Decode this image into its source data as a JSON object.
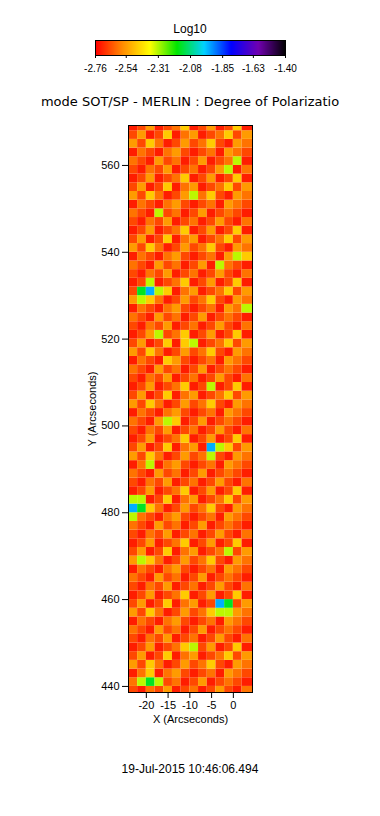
{
  "chart_data": {
    "type": "heatmap",
    "title": "mode SOT/SP - MERLIN : Degree of Polarizatio",
    "x_label": "X (Arcseconds)",
    "y_label": "Y (Arcseconds)",
    "xlim": [
      -24.1,
      4.4
    ],
    "ylim": [
      438.6,
      569.2
    ],
    "xticks": [
      -20,
      -15,
      -10,
      -5,
      0
    ],
    "yticks": [
      440,
      460,
      480,
      500,
      520,
      540,
      560
    ],
    "x_edges": [
      -25,
      -22,
      -20,
      -18,
      -16,
      -14,
      -12,
      -10,
      -8,
      -6,
      -4,
      -2,
      0,
      2,
      5
    ],
    "y_edges": [
      438,
      440,
      442,
      444,
      446,
      448,
      450,
      452,
      454,
      456,
      458,
      460,
      462,
      464,
      466,
      468,
      470,
      472,
      474,
      476,
      478,
      480,
      482,
      484,
      486,
      488,
      490,
      492,
      494,
      496,
      498,
      500,
      502,
      504,
      506,
      508,
      510,
      512,
      514,
      516,
      518,
      520,
      522,
      524,
      526,
      528,
      530,
      532,
      534,
      536,
      538,
      540,
      542,
      544,
      546,
      548,
      550,
      552,
      554,
      556,
      558,
      560,
      562,
      564,
      566,
      568,
      570
    ],
    "z": [
      [
        -2.66,
        -2.72,
        -2.6,
        -2.66,
        -2.54,
        -2.72,
        -2.66,
        -2.6,
        -2.72,
        -2.66,
        -2.54,
        -2.66,
        -2.72,
        -2.6
      ],
      [
        -2.6,
        -2.32,
        -2.15,
        -2.32,
        -2.66,
        -2.6,
        -2.72,
        -2.66,
        -2.54,
        -2.72,
        -2.66,
        -2.6,
        -2.66,
        -2.72
      ],
      [
        -2.72,
        -2.6,
        -2.46,
        -2.72,
        -2.6,
        -2.54,
        -2.66,
        -2.72,
        -2.66,
        -2.6,
        -2.72,
        -2.54,
        -2.6,
        -2.66
      ],
      [
        -2.54,
        -2.66,
        -2.46,
        -2.6,
        -2.72,
        -2.66,
        -2.54,
        -2.66,
        -2.6,
        -2.46,
        -2.66,
        -2.72,
        -2.54,
        -2.6
      ],
      [
        -2.66,
        -2.54,
        -2.72,
        -2.66,
        -2.46,
        -2.72,
        -2.6,
        -2.54,
        -2.72,
        -2.66,
        -2.6,
        -2.46,
        -2.66,
        -2.54
      ],
      [
        -2.72,
        -2.66,
        -2.54,
        -2.72,
        -2.66,
        -2.6,
        -2.46,
        -2.32,
        -2.66,
        -2.54,
        -2.72,
        -2.66,
        -2.46,
        -2.72
      ],
      [
        -2.66,
        -2.72,
        -2.6,
        -2.66,
        -2.54,
        -2.72,
        -2.66,
        -2.6,
        -2.72,
        -2.66,
        -2.54,
        -2.66,
        -2.72,
        -2.6
      ],
      [
        -2.6,
        -2.66,
        -2.72,
        -2.54,
        -2.66,
        -2.6,
        -2.72,
        -2.66,
        -2.54,
        -2.72,
        -2.66,
        -2.6,
        -2.66,
        -2.72
      ],
      [
        -2.72,
        -2.6,
        -2.66,
        -2.72,
        -2.6,
        -2.54,
        -2.66,
        -2.72,
        -2.66,
        -2.6,
        -2.72,
        -2.54,
        -2.6,
        -2.66
      ],
      [
        -2.54,
        -2.66,
        -2.46,
        -2.6,
        -2.72,
        -2.66,
        -2.54,
        -2.66,
        -2.6,
        -2.46,
        -2.32,
        -2.32,
        -2.54,
        -2.6
      ],
      [
        -2.66,
        -2.54,
        -2.72,
        -2.66,
        -2.46,
        -2.72,
        -2.6,
        -2.54,
        -2.72,
        -2.66,
        -1.95,
        -2.15,
        -2.66,
        -2.54
      ],
      [
        -2.72,
        -2.66,
        -2.54,
        -2.72,
        -2.66,
        -2.6,
        -2.46,
        -2.72,
        -2.66,
        -2.54,
        -2.72,
        -2.66,
        -2.46,
        -2.72
      ],
      [
        -2.66,
        -2.72,
        -2.6,
        -2.66,
        -2.54,
        -2.72,
        -2.66,
        -2.6,
        -2.72,
        -2.66,
        -2.54,
        -2.66,
        -2.72,
        -2.6
      ],
      [
        -2.6,
        -2.66,
        -2.72,
        -2.54,
        -2.66,
        -2.6,
        -2.72,
        -2.66,
        -2.54,
        -2.72,
        -2.66,
        -2.6,
        -2.66,
        -2.72
      ],
      [
        -2.72,
        -2.6,
        -2.66,
        -2.72,
        -2.6,
        -2.54,
        -2.66,
        -2.72,
        -2.66,
        -2.6,
        -2.72,
        -2.54,
        -2.6,
        -2.66
      ],
      [
        -2.54,
        -2.32,
        -2.46,
        -2.6,
        -2.72,
        -2.66,
        -2.54,
        -2.66,
        -2.6,
        -2.46,
        -2.66,
        -2.72,
        -2.54,
        -2.6
      ],
      [
        -2.66,
        -2.54,
        -2.72,
        -2.66,
        -2.46,
        -2.72,
        -2.6,
        -2.54,
        -2.72,
        -2.66,
        -2.6,
        -2.32,
        -2.66,
        -2.54
      ],
      [
        -2.72,
        -2.66,
        -2.54,
        -2.72,
        -2.66,
        -2.6,
        -2.46,
        -2.72,
        -2.66,
        -2.54,
        -2.72,
        -2.66,
        -2.46,
        -2.72
      ],
      [
        -2.66,
        -2.72,
        -2.6,
        -2.66,
        -2.54,
        -2.72,
        -2.66,
        -2.6,
        -2.72,
        -2.66,
        -2.54,
        -2.66,
        -2.72,
        -2.6
      ],
      [
        -2.6,
        -2.66,
        -2.72,
        -2.54,
        -2.66,
        -2.6,
        -2.72,
        -2.66,
        -2.54,
        -2.72,
        -2.66,
        -2.6,
        -2.66,
        -2.72
      ],
      [
        -2.32,
        -2.6,
        -2.66,
        -2.72,
        -2.6,
        -2.54,
        -2.66,
        -2.72,
        -2.66,
        -2.6,
        -2.72,
        -2.54,
        -2.6,
        -2.66
      ],
      [
        -1.95,
        -2.15,
        -2.46,
        -2.6,
        -2.72,
        -2.66,
        -2.54,
        -2.66,
        -2.6,
        -2.46,
        -2.66,
        -2.72,
        -2.54,
        -2.6
      ],
      [
        -2.32,
        -2.32,
        -2.72,
        -2.66,
        -2.46,
        -2.72,
        -2.6,
        -2.54,
        -2.72,
        -2.66,
        -2.6,
        -2.46,
        -2.66,
        -2.54
      ],
      [
        -2.72,
        -2.66,
        -2.54,
        -2.72,
        -2.66,
        -2.6,
        -2.46,
        -2.72,
        -2.66,
        -2.54,
        -2.72,
        -2.66,
        -2.46,
        -2.72
      ],
      [
        -2.66,
        -2.72,
        -2.6,
        -2.66,
        -2.54,
        -2.72,
        -2.66,
        -2.6,
        -2.72,
        -2.66,
        -2.54,
        -2.66,
        -2.72,
        -2.6
      ],
      [
        -2.6,
        -2.66,
        -2.72,
        -2.54,
        -2.66,
        -2.6,
        -2.72,
        -2.66,
        -2.54,
        -2.72,
        -2.66,
        -2.6,
        -2.66,
        -2.72
      ],
      [
        -2.72,
        -2.6,
        -2.32,
        -2.72,
        -2.6,
        -2.54,
        -2.66,
        -2.72,
        -2.66,
        -2.6,
        -2.72,
        -2.54,
        -2.6,
        -2.66
      ],
      [
        -2.54,
        -2.66,
        -2.46,
        -2.6,
        -2.72,
        -2.66,
        -2.54,
        -2.66,
        -2.6,
        -2.32,
        -2.66,
        -2.72,
        -2.54,
        -2.6
      ],
      [
        -2.66,
        -2.54,
        -2.72,
        -2.66,
        -2.46,
        -2.72,
        -2.6,
        -2.54,
        -2.72,
        -1.95,
        -2.32,
        -2.46,
        -2.66,
        -2.54
      ],
      [
        -2.72,
        -2.66,
        -2.54,
        -2.72,
        -2.66,
        -2.6,
        -2.46,
        -2.72,
        -2.66,
        -2.54,
        -2.72,
        -2.66,
        -2.46,
        -2.72
      ],
      [
        -2.66,
        -2.72,
        -2.6,
        -2.66,
        -2.54,
        -2.72,
        -2.66,
        -2.6,
        -2.72,
        -2.66,
        -2.54,
        -2.66,
        -2.72,
        -2.6
      ],
      [
        -2.6,
        -2.66,
        -2.72,
        -2.54,
        -2.32,
        -2.46,
        -2.72,
        -2.66,
        -2.54,
        -2.72,
        -2.66,
        -2.6,
        -2.66,
        -2.72
      ],
      [
        -2.72,
        -2.6,
        -2.66,
        -2.72,
        -2.6,
        -2.54,
        -2.66,
        -2.72,
        -2.66,
        -2.6,
        -2.72,
        -2.54,
        -2.6,
        -2.66
      ],
      [
        -2.54,
        -2.66,
        -2.46,
        -2.6,
        -2.72,
        -2.66,
        -2.54,
        -2.66,
        -2.6,
        -2.46,
        -2.66,
        -2.72,
        -2.54,
        -2.6
      ],
      [
        -2.66,
        -2.54,
        -2.72,
        -2.66,
        -2.46,
        -2.72,
        -2.6,
        -2.54,
        -2.72,
        -2.66,
        -2.6,
        -2.46,
        -2.66,
        -2.54
      ],
      [
        -2.72,
        -2.66,
        -2.54,
        -2.72,
        -2.66,
        -2.6,
        -2.46,
        -2.72,
        -2.66,
        -2.32,
        -2.72,
        -2.66,
        -2.46,
        -2.72
      ],
      [
        -2.66,
        -2.72,
        -2.6,
        -2.66,
        -2.54,
        -2.72,
        -2.66,
        -2.6,
        -2.72,
        -2.66,
        -2.54,
        -2.66,
        -2.72,
        -2.6
      ],
      [
        -2.6,
        -2.66,
        -2.72,
        -2.54,
        -2.66,
        -2.6,
        -2.72,
        -2.66,
        -2.54,
        -2.72,
        -2.66,
        -2.6,
        -2.66,
        -2.72
      ],
      [
        -2.72,
        -2.6,
        -2.66,
        -2.72,
        -2.46,
        -2.54,
        -2.66,
        -2.72,
        -2.66,
        -2.6,
        -2.72,
        -2.54,
        -2.6,
        -2.66
      ],
      [
        -2.54,
        -2.66,
        -2.46,
        -2.6,
        -2.72,
        -2.66,
        -2.54,
        -2.66,
        -2.6,
        -2.46,
        -2.66,
        -2.72,
        -2.54,
        -2.6
      ],
      [
        -2.66,
        -2.54,
        -2.72,
        -2.66,
        -2.46,
        -2.72,
        -2.46,
        -2.32,
        -2.72,
        -2.66,
        -2.6,
        -2.46,
        -2.66,
        -2.54
      ],
      [
        -2.72,
        -2.66,
        -2.54,
        -2.32,
        -2.66,
        -2.6,
        -2.46,
        -2.72,
        -2.66,
        -2.54,
        -2.72,
        -2.66,
        -2.46,
        -2.72
      ],
      [
        -2.66,
        -2.72,
        -2.6,
        -2.66,
        -2.54,
        -2.72,
        -2.66,
        -2.6,
        -2.72,
        -2.66,
        -2.54,
        -2.66,
        -2.72,
        -2.6
      ],
      [
        -2.6,
        -2.66,
        -2.72,
        -2.54,
        -2.66,
        -2.6,
        -2.72,
        -2.66,
        -2.54,
        -2.72,
        -2.66,
        -2.6,
        -2.66,
        -2.72
      ],
      [
        -2.72,
        -2.6,
        -2.66,
        -2.72,
        -2.6,
        -2.54,
        -2.66,
        -2.72,
        -2.66,
        -2.6,
        -2.72,
        -2.54,
        -2.6,
        -2.32
      ],
      [
        -2.54,
        -2.32,
        -2.46,
        -2.6,
        -2.72,
        -2.66,
        -2.54,
        -2.66,
        -2.6,
        -2.46,
        -2.66,
        -2.72,
        -2.54,
        -2.6
      ],
      [
        -2.66,
        -2.15,
        -1.95,
        -2.32,
        -2.46,
        -2.72,
        -2.6,
        -2.54,
        -2.72,
        -2.66,
        -2.6,
        -2.46,
        -2.66,
        -2.54
      ],
      [
        -2.72,
        -2.66,
        -2.32,
        -2.72,
        -2.66,
        -2.6,
        -2.46,
        -2.72,
        -2.66,
        -2.54,
        -2.72,
        -2.66,
        -2.46,
        -2.72
      ],
      [
        -2.66,
        -2.72,
        -2.6,
        -2.66,
        -2.54,
        -2.72,
        -2.66,
        -2.6,
        -2.72,
        -2.66,
        -2.54,
        -2.66,
        -2.72,
        -2.6
      ],
      [
        -2.6,
        -2.66,
        -2.72,
        -2.54,
        -2.66,
        -2.6,
        -2.72,
        -2.66,
        -2.54,
        -2.72,
        -2.32,
        -2.6,
        -2.66,
        -2.72
      ],
      [
        -2.72,
        -2.6,
        -2.66,
        -2.72,
        -2.6,
        -2.54,
        -2.66,
        -2.72,
        -2.66,
        -2.6,
        -2.72,
        -2.54,
        -2.32,
        -2.46
      ],
      [
        -2.54,
        -2.66,
        -2.46,
        -2.6,
        -2.72,
        -2.66,
        -2.54,
        -2.66,
        -2.6,
        -2.46,
        -2.66,
        -2.72,
        -2.54,
        -2.6
      ],
      [
        -2.66,
        -2.54,
        -2.72,
        -2.66,
        -2.46,
        -2.72,
        -2.6,
        -2.54,
        -2.72,
        -2.66,
        -2.6,
        -2.46,
        -2.66,
        -2.54
      ],
      [
        -2.72,
        -2.66,
        -2.54,
        -2.72,
        -2.66,
        -2.6,
        -2.46,
        -2.72,
        -2.66,
        -2.54,
        -2.72,
        -2.66,
        -2.46,
        -2.72
      ],
      [
        -2.66,
        -2.72,
        -2.6,
        -2.66,
        -2.54,
        -2.72,
        -2.66,
        -2.6,
        -2.72,
        -2.66,
        -2.54,
        -2.66,
        -2.72,
        -2.6
      ],
      [
        -2.6,
        -2.66,
        -2.72,
        -2.32,
        -2.66,
        -2.6,
        -2.72,
        -2.66,
        -2.54,
        -2.72,
        -2.66,
        -2.6,
        -2.66,
        -2.72
      ],
      [
        -2.72,
        -2.6,
        -2.66,
        -2.72,
        -2.6,
        -2.54,
        -2.66,
        -2.72,
        -2.66,
        -2.6,
        -2.72,
        -2.54,
        -2.6,
        -2.66
      ],
      [
        -2.54,
        -2.66,
        -2.46,
        -2.6,
        -2.72,
        -2.66,
        -2.54,
        -2.32,
        -2.6,
        -2.46,
        -2.66,
        -2.72,
        -2.54,
        -2.6
      ],
      [
        -2.66,
        -2.54,
        -2.72,
        -2.66,
        -2.46,
        -2.72,
        -2.6,
        -2.54,
        -2.72,
        -2.66,
        -2.6,
        -2.46,
        -2.66,
        -2.54
      ],
      [
        -2.72,
        -2.66,
        -2.54,
        -2.72,
        -2.66,
        -2.6,
        -2.46,
        -2.72,
        -2.66,
        -2.54,
        -2.72,
        -2.66,
        -2.46,
        -2.72
      ],
      [
        -2.66,
        -2.72,
        -2.6,
        -2.66,
        -2.54,
        -2.72,
        -2.66,
        -2.6,
        -2.72,
        -2.66,
        -2.54,
        -2.32,
        -2.72,
        -2.6
      ],
      [
        -2.6,
        -2.66,
        -2.72,
        -2.54,
        -2.66,
        -2.6,
        -2.72,
        -2.66,
        -2.54,
        -2.72,
        -2.66,
        -2.6,
        -2.32,
        -2.72
      ],
      [
        -2.72,
        -2.6,
        -2.66,
        -2.72,
        -2.6,
        -2.54,
        -2.66,
        -2.72,
        -2.66,
        -2.6,
        -2.72,
        -2.54,
        -2.6,
        -2.66
      ],
      [
        -2.54,
        -2.66,
        -2.46,
        -2.6,
        -2.72,
        -2.66,
        -2.54,
        -2.66,
        -2.6,
        -2.46,
        -2.66,
        -2.72,
        -2.54,
        -2.6
      ],
      [
        -2.66,
        -2.54,
        -2.72,
        -2.66,
        -2.46,
        -2.72,
        -2.6,
        -2.54,
        -2.72,
        -2.66,
        -2.6,
        -2.46,
        -2.66,
        -2.54
      ],
      [
        -2.72,
        -2.66,
        -2.54,
        -2.72,
        -2.66,
        -2.6,
        -2.46,
        -2.72,
        -2.66,
        -2.54,
        -2.72,
        -2.66,
        -2.46,
        -2.72
      ]
    ],
    "colorbar": {
      "label": "Log10",
      "range": [
        -2.76,
        -1.4
      ],
      "ticks": [
        -2.76,
        -2.54,
        -2.31,
        -2.08,
        -1.85,
        -1.63,
        {
          "value": -1.4,
          "label": "-1.40"
        }
      ],
      "colors": [
        "#ff0000",
        "#ff8c00",
        "#ffff00",
        "#00e600",
        "#00d2ff",
        "#0000ff",
        "#7000b0",
        "#000000"
      ]
    },
    "annotation": "19-Jul-2015 10:46:06.494"
  }
}
